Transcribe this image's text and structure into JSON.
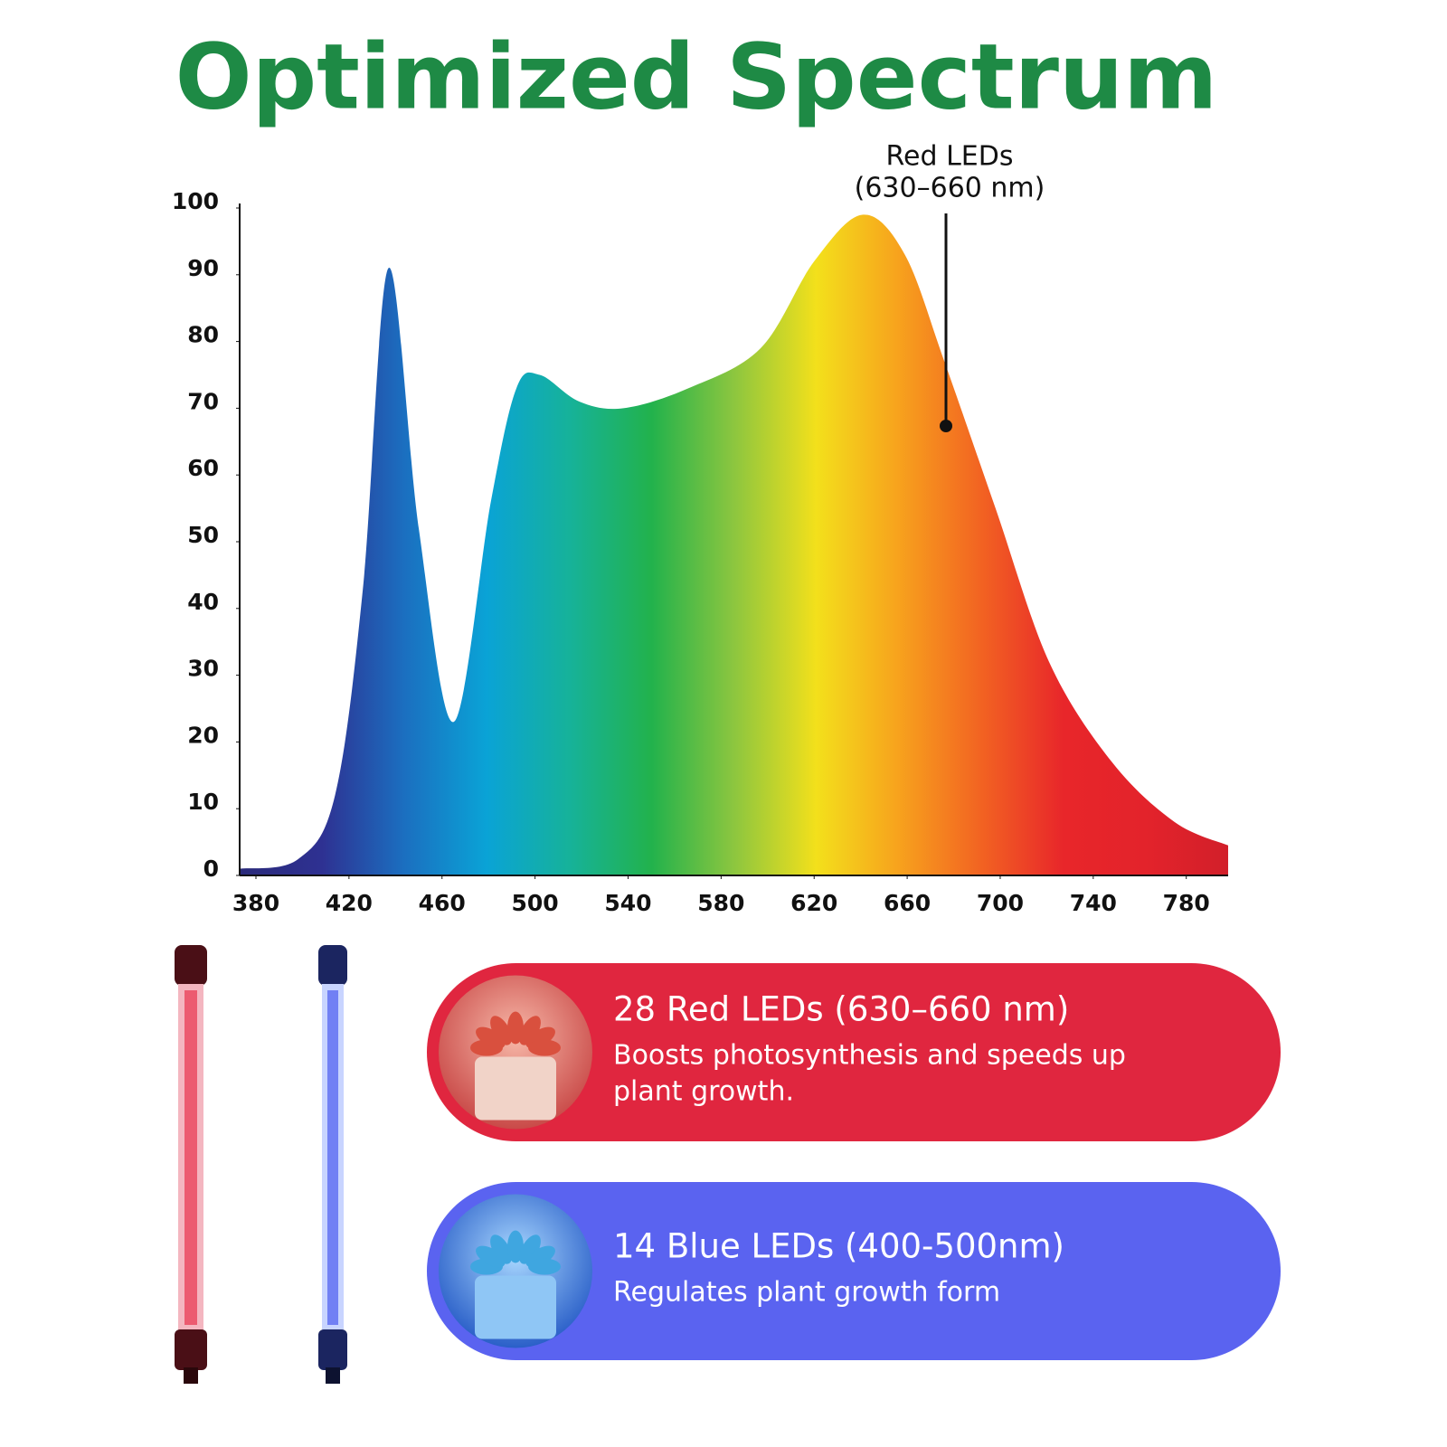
{
  "header": {
    "title": "Optimized Spectrum"
  },
  "chart_data": {
    "type": "area",
    "x": [
      373,
      398,
      414,
      426,
      437,
      450,
      465,
      481,
      492,
      502,
      519,
      538,
      566,
      597,
      620,
      641,
      659,
      676,
      698,
      721,
      748,
      775,
      798
    ],
    "values": [
      1,
      2.4,
      12,
      43,
      91,
      52,
      23,
      56,
      73,
      75,
      71,
      70,
      73,
      79,
      92,
      99,
      93,
      77,
      55,
      32,
      17,
      8,
      4.5
    ],
    "xlim": [
      373,
      798
    ],
    "xticks": [
      380,
      420,
      460,
      500,
      540,
      580,
      620,
      660,
      700,
      740,
      780
    ],
    "ylim": [
      0,
      100
    ],
    "yticks": [
      0,
      10,
      20,
      30,
      40,
      50,
      60,
      70,
      80,
      90,
      100
    ],
    "colors": [
      "#2a2a7a",
      "#2e3192",
      "#1b6fc0",
      "#0aa3d6",
      "#16b29a",
      "#22b24c",
      "#8cc63f",
      "#f3e01b",
      "#f7a21d",
      "#f26322",
      "#e8262a",
      "#e3232b",
      "#d21f2a"
    ],
    "annotation": [
      "Red LEDs",
      "(630–660 nm)"
    ]
  },
  "cards": [
    {
      "title": "28 Red LEDs (630–660 nm)",
      "description": [
        "Boosts photosynthesis and speeds up",
        "plant growth."
      ],
      "color": "#e0263f"
    },
    {
      "title": "14 Blue LEDs (400-500nm)",
      "description": [
        "Regulates plant growth form"
      ],
      "color": "#5a63f0"
    }
  ]
}
